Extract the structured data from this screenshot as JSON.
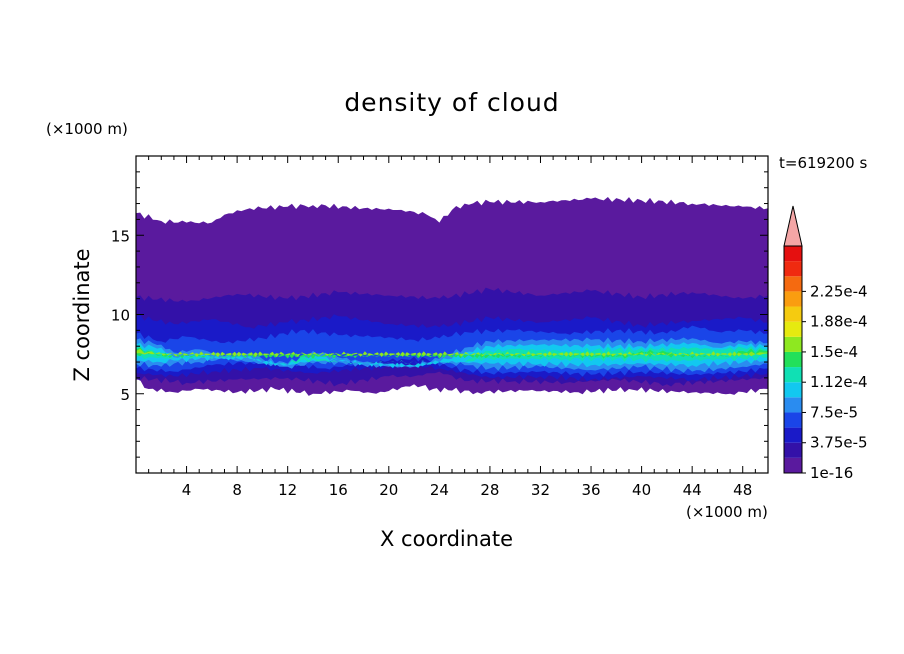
{
  "chart_data": {
    "type": "heatmap",
    "title": "density of cloud",
    "xlabel": "X coordinate",
    "ylabel": "Z coordinate",
    "x_unit": "(×1000 m)",
    "y_unit": "(×1000 m)",
    "annotation": "t=619200 s",
    "xlim": [
      0,
      50
    ],
    "ylim": [
      0,
      20
    ],
    "x_ticks": [
      "4",
      "8",
      "12",
      "16",
      "20",
      "24",
      "28",
      "32",
      "36",
      "40",
      "44",
      "48"
    ],
    "y_ticks": [
      "5",
      "10",
      "15"
    ],
    "colorbar": {
      "labels": [
        "1e-16",
        "3.75e-5",
        "7.5e-5",
        "1.12e-4",
        "1.5e-4",
        "1.88e-4",
        "2.25e-4"
      ],
      "level_colors": [
        "#5a1a9e",
        "#3311a8",
        "#1a1ac8",
        "#1a45e8",
        "#2a8cf0",
        "#12c8f0",
        "#10e0b4",
        "#22e05a",
        "#8ee820",
        "#e6ea10",
        "#f5cb10",
        "#fa9d10",
        "#f56a10",
        "#f02a10",
        "#e51010"
      ],
      "extend_color": "#f4a6a6"
    },
    "bands": [
      {
        "level": 0,
        "top": [
          [
            0,
            16.4
          ],
          [
            2,
            15.9
          ],
          [
            4,
            15.8
          ],
          [
            6,
            15.8
          ],
          [
            7,
            16.3
          ],
          [
            9,
            16.7
          ],
          [
            12,
            16.8
          ],
          [
            14,
            16.9
          ],
          [
            18,
            16.7
          ],
          [
            21,
            16.6
          ],
          [
            23,
            16.3
          ],
          [
            24,
            15.8
          ],
          [
            25,
            16.6
          ],
          [
            26,
            17.0
          ],
          [
            28,
            17.1
          ],
          [
            32,
            17.1
          ],
          [
            36,
            17.3
          ],
          [
            40,
            17.2
          ],
          [
            44,
            17.0
          ],
          [
            48,
            16.8
          ],
          [
            50,
            16.7
          ]
        ],
        "bot": [
          [
            0,
            5.9
          ],
          [
            1,
            5.3
          ],
          [
            3,
            5.1
          ],
          [
            5,
            5.3
          ],
          [
            8,
            5.1
          ],
          [
            11,
            5.3
          ],
          [
            14,
            5.0
          ],
          [
            17,
            5.2
          ],
          [
            19,
            5.0
          ],
          [
            21,
            5.4
          ],
          [
            22,
            5.6
          ],
          [
            23.5,
            5.3
          ],
          [
            25,
            5.2
          ],
          [
            27,
            5.1
          ],
          [
            31,
            5.2
          ],
          [
            35,
            5.1
          ],
          [
            39,
            5.3
          ],
          [
            43,
            5.1
          ],
          [
            47,
            5.0
          ],
          [
            50,
            5.3
          ]
        ]
      },
      {
        "level": 1,
        "top": [
          [
            0,
            11.1
          ],
          [
            4,
            10.8
          ],
          [
            8,
            11.3
          ],
          [
            12,
            11.0
          ],
          [
            16,
            11.4
          ],
          [
            20,
            11.2
          ],
          [
            24,
            11.0
          ],
          [
            28,
            11.6
          ],
          [
            32,
            11.2
          ],
          [
            36,
            11.5
          ],
          [
            40,
            11.1
          ],
          [
            44,
            11.4
          ],
          [
            48,
            11.0
          ],
          [
            50,
            11.2
          ]
        ],
        "bot": [
          [
            0,
            6.0
          ],
          [
            4,
            5.7
          ],
          [
            8,
            5.9
          ],
          [
            12,
            6.0
          ],
          [
            16,
            5.6
          ],
          [
            20,
            6.1
          ],
          [
            22,
            6.1
          ],
          [
            24,
            6.4
          ],
          [
            26,
            5.8
          ],
          [
            30,
            5.8
          ],
          [
            34,
            5.7
          ],
          [
            38,
            5.9
          ],
          [
            42,
            5.6
          ],
          [
            46,
            5.8
          ],
          [
            50,
            6.0
          ]
        ]
      },
      {
        "level": 2,
        "top": [
          [
            0,
            9.9
          ],
          [
            3,
            9.4
          ],
          [
            6,
            9.7
          ],
          [
            9,
            9.2
          ],
          [
            12,
            9.5
          ],
          [
            16,
            9.9
          ],
          [
            20,
            9.4
          ],
          [
            24,
            9.2
          ],
          [
            28,
            9.8
          ],
          [
            32,
            9.5
          ],
          [
            36,
            9.8
          ],
          [
            40,
            9.3
          ],
          [
            44,
            9.6
          ],
          [
            48,
            9.8
          ],
          [
            50,
            9.5
          ]
        ],
        "bot": [
          [
            0,
            6.3
          ],
          [
            3,
            6.1
          ],
          [
            6,
            6.4
          ],
          [
            10,
            6.6
          ],
          [
            14,
            6.3
          ],
          [
            18,
            6.6
          ],
          [
            22,
            6.8
          ],
          [
            24,
            6.6
          ],
          [
            28,
            6.0
          ],
          [
            32,
            6.1
          ],
          [
            36,
            5.9
          ],
          [
            40,
            6.1
          ],
          [
            44,
            5.9
          ],
          [
            48,
            6.1
          ],
          [
            50,
            6.3
          ]
        ]
      },
      {
        "level": 3,
        "top": [
          [
            0,
            8.8
          ],
          [
            2,
            8.3
          ],
          [
            4,
            8.6
          ],
          [
            7,
            8.2
          ],
          [
            10,
            8.5
          ],
          [
            13,
            9.0
          ],
          [
            16,
            8.7
          ],
          [
            19,
            8.6
          ],
          [
            22,
            8.4
          ],
          [
            24,
            8.5
          ],
          [
            26,
            8.9
          ],
          [
            30,
            9.0
          ],
          [
            34,
            8.8
          ],
          [
            38,
            9.0
          ],
          [
            42,
            8.8
          ],
          [
            44,
            9.3
          ],
          [
            46,
            8.9
          ],
          [
            48,
            9.0
          ],
          [
            50,
            8.8
          ]
        ],
        "bot": [
          [
            0,
            6.6
          ],
          [
            3,
            6.4
          ],
          [
            6,
            6.8
          ],
          [
            9,
            7.0
          ],
          [
            12,
            6.9
          ],
          [
            15,
            6.6
          ],
          [
            18,
            6.9
          ],
          [
            21,
            7.2
          ],
          [
            23,
            7.2
          ],
          [
            25,
            6.6
          ],
          [
            28,
            6.3
          ],
          [
            32,
            6.4
          ],
          [
            36,
            6.2
          ],
          [
            40,
            6.4
          ],
          [
            44,
            6.2
          ],
          [
            48,
            6.4
          ],
          [
            50,
            6.6
          ]
        ]
      },
      {
        "level": 4,
        "top": [
          [
            0,
            8.4
          ],
          [
            2,
            8.1
          ],
          [
            3,
            7.6
          ],
          [
            5,
            7.8
          ],
          [
            7,
            7.4
          ],
          [
            9,
            7.6
          ],
          [
            10,
            7.2
          ],
          [
            12,
            6.9
          ],
          [
            14,
            7.7
          ],
          [
            16,
            7.3
          ],
          [
            18,
            7.0
          ],
          [
            20,
            6.9
          ],
          [
            22,
            6.8
          ],
          [
            24,
            7.2
          ],
          [
            26,
            7.9
          ],
          [
            28,
            8.3
          ],
          [
            32,
            8.4
          ],
          [
            36,
            8.4
          ],
          [
            40,
            8.3
          ],
          [
            44,
            8.5
          ],
          [
            46,
            8.2
          ],
          [
            48,
            8.3
          ],
          [
            50,
            8.2
          ]
        ],
        "bot": [
          [
            0,
            6.9
          ],
          [
            2,
            6.7
          ],
          [
            3,
            6.9
          ],
          [
            5,
            7.0
          ],
          [
            7,
            7.2
          ],
          [
            9,
            7.0
          ],
          [
            10,
            6.9
          ],
          [
            12,
            6.7
          ],
          [
            14,
            6.9
          ],
          [
            16,
            7.0
          ],
          [
            18,
            6.8
          ],
          [
            20,
            6.7
          ],
          [
            22,
            6.7
          ],
          [
            24,
            7.0
          ],
          [
            26,
            6.8
          ],
          [
            28,
            6.6
          ],
          [
            32,
            6.7
          ],
          [
            36,
            6.5
          ],
          [
            40,
            6.7
          ],
          [
            44,
            6.4
          ],
          [
            48,
            6.7
          ],
          [
            50,
            6.9
          ]
        ]
      },
      {
        "level": 5,
        "top": [
          [
            0,
            8.1
          ],
          [
            2,
            7.9
          ],
          [
            3,
            7.3
          ],
          [
            5,
            7.5
          ],
          [
            7,
            7.2
          ],
          [
            9,
            7.4
          ],
          [
            10,
            7.0
          ],
          [
            12,
            6.8
          ],
          [
            14,
            7.5
          ],
          [
            16,
            7.1
          ],
          [
            18,
            6.9
          ],
          [
            20,
            6.85
          ],
          [
            22,
            6.75
          ],
          [
            24,
            7.0
          ],
          [
            26,
            7.6
          ],
          [
            28,
            8.0
          ],
          [
            32,
            8.1
          ],
          [
            36,
            8.0
          ],
          [
            40,
            8.0
          ],
          [
            44,
            8.2
          ],
          [
            46,
            7.9
          ],
          [
            48,
            8.1
          ],
          [
            50,
            8.0
          ]
        ],
        "bot": [
          [
            0,
            7.1
          ],
          [
            2,
            7.0
          ],
          [
            3,
            7.1
          ],
          [
            5,
            7.2
          ],
          [
            7,
            7.3
          ],
          [
            9,
            7.2
          ],
          [
            10,
            7.0
          ],
          [
            12,
            6.8
          ],
          [
            14,
            7.1
          ],
          [
            16,
            7.1
          ],
          [
            18,
            6.9
          ],
          [
            20,
            6.8
          ],
          [
            22,
            6.75
          ],
          [
            24,
            7.0
          ],
          [
            26,
            7.0
          ],
          [
            28,
            6.9
          ],
          [
            32,
            6.9
          ],
          [
            36,
            6.8
          ],
          [
            40,
            6.9
          ],
          [
            44,
            6.8
          ],
          [
            48,
            7.0
          ],
          [
            50,
            7.1
          ]
        ]
      },
      {
        "level": 6,
        "top": [
          [
            0,
            7.9
          ],
          [
            1,
            7.8
          ],
          [
            2,
            7.6
          ],
          [
            3,
            7.2
          ],
          [
            5,
            7.4
          ],
          [
            7,
            7.25
          ],
          [
            9,
            7.3
          ],
          [
            10,
            7.05
          ],
          [
            12,
            6.8
          ],
          [
            13,
            7.3
          ],
          [
            15,
            7.2
          ],
          [
            16,
            6.95
          ],
          [
            26,
            7.0
          ],
          [
            27,
            7.6
          ],
          [
            30,
            7.8
          ],
          [
            34,
            7.7
          ],
          [
            38,
            7.8
          ],
          [
            41,
            7.8
          ],
          [
            44,
            7.9
          ],
          [
            46,
            7.8
          ],
          [
            48,
            7.9
          ],
          [
            50,
            7.8
          ]
        ],
        "bot": [
          [
            0,
            7.3
          ],
          [
            1,
            7.3
          ],
          [
            2,
            7.3
          ],
          [
            3,
            7.2
          ],
          [
            5,
            7.3
          ],
          [
            7,
            7.3
          ],
          [
            9,
            7.3
          ],
          [
            10,
            7.05
          ],
          [
            12,
            6.8
          ],
          [
            13,
            7.1
          ],
          [
            15,
            7.1
          ],
          [
            16,
            6.95
          ],
          [
            26,
            7.0
          ],
          [
            27,
            7.2
          ],
          [
            30,
            7.2
          ],
          [
            34,
            7.2
          ],
          [
            38,
            7.2
          ],
          [
            41,
            7.1
          ],
          [
            44,
            7.1
          ],
          [
            46,
            7.2
          ],
          [
            48,
            7.2
          ],
          [
            50,
            7.3
          ]
        ]
      },
      {
        "level": 7,
        "top": [
          [
            0,
            7.8
          ],
          [
            1,
            7.7
          ],
          [
            2,
            7.4
          ],
          [
            39,
            7.4
          ],
          [
            40,
            7.7
          ],
          [
            42,
            7.6
          ],
          [
            43,
            7.4
          ],
          [
            47,
            7.4
          ],
          [
            48,
            7.7
          ],
          [
            50,
            7.7
          ]
        ],
        "bot": [
          [
            0,
            7.5
          ],
          [
            1,
            7.5
          ],
          [
            2,
            7.4
          ],
          [
            39,
            7.4
          ],
          [
            40,
            7.5
          ],
          [
            42,
            7.5
          ],
          [
            43,
            7.4
          ],
          [
            47,
            7.4
          ],
          [
            48,
            7.5
          ],
          [
            50,
            7.5
          ]
        ]
      },
      {
        "level": 8,
        "top": [
          [
            0,
            7.7
          ],
          [
            1,
            7.65
          ],
          [
            1.5,
            7.5
          ],
          [
            49,
            7.5
          ],
          [
            50,
            7.6
          ]
        ],
        "bot": [
          [
            0,
            7.55
          ],
          [
            1,
            7.55
          ],
          [
            1.5,
            7.5
          ],
          [
            49,
            7.5
          ],
          [
            50,
            7.55
          ]
        ]
      }
    ]
  }
}
